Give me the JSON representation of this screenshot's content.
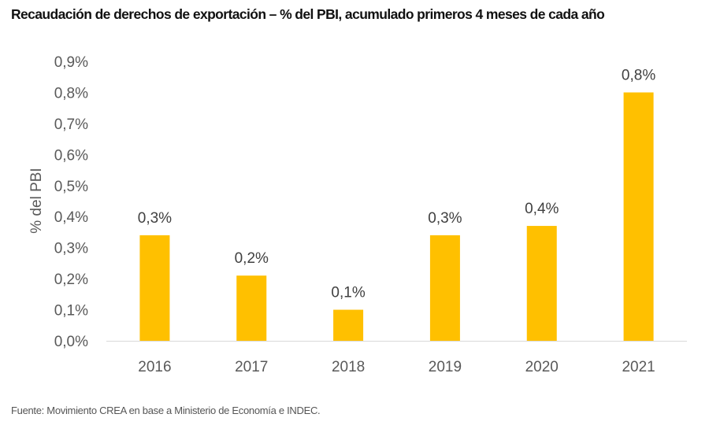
{
  "chart_data": {
    "type": "bar",
    "title": "Recaudación de derechos de exportación – % del PBI, acumulado primeros 4 meses de cada año",
    "xlabel": "",
    "ylabel": "% del PBI",
    "categories": [
      "2016",
      "2017",
      "2018",
      "2019",
      "2020",
      "2021"
    ],
    "values": [
      0.34,
      0.21,
      0.1,
      0.34,
      0.37,
      0.8
    ],
    "data_labels": [
      "0,3%",
      "0,2%",
      "0,1%",
      "0,3%",
      "0,4%",
      "0,8%"
    ],
    "ylim": [
      0,
      0.9
    ],
    "yticks": [
      0,
      0.1,
      0.2,
      0.3,
      0.4,
      0.5,
      0.6,
      0.7,
      0.8,
      0.9
    ],
    "ytick_labels": [
      "0,0%",
      "0,1%",
      "0,2%",
      "0,3%",
      "0,4%",
      "0,5%",
      "0,6%",
      "0,7%",
      "0,8%",
      "0,9%"
    ],
    "grid": false,
    "legend": "none",
    "bar_color": "#FFC000"
  },
  "footer": "Fuente: Movimiento CREA en base a Ministerio de Economía e INDEC."
}
